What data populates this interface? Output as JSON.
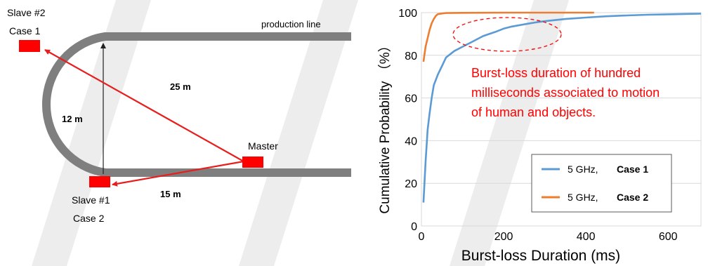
{
  "diagram": {
    "production_line_label": "production line",
    "slave2_label": "Slave #2",
    "slave2_case": "Case 1",
    "slave1_label": "Slave #1",
    "slave1_case": "Case 2",
    "master_label": "Master",
    "distance_25": "25 m",
    "distance_12": "12 m",
    "distance_15": "15 m",
    "track_color": "#7f7f7f",
    "node_color": "#ff0000",
    "link_color": "#e81e1e"
  },
  "annotation": {
    "lines": [
      "Burst-loss duration of hundred",
      "milliseconds associated to motion",
      "of human and objects."
    ],
    "color": "#ff0000"
  },
  "chart_data": {
    "type": "line",
    "title": "",
    "xlabel": "Burst-loss Duration (ms)",
    "ylabel": "Cumulative Probability （%）",
    "xlim": [
      0,
      680
    ],
    "ylim": [
      0,
      100
    ],
    "xticks": [
      0,
      200,
      400,
      600
    ],
    "yticks": [
      0,
      20,
      40,
      60,
      80,
      100
    ],
    "grid": "horizontal",
    "legend_position": "bottom-right",
    "series": [
      {
        "name_freq": "5 GHz,",
        "name_case": "Case 1",
        "color": "#5b9bd5",
        "x": [
          5,
          10,
          15,
          20,
          25,
          30,
          40,
          50,
          60,
          80,
          100,
          120,
          150,
          180,
          200,
          220,
          250,
          280,
          300,
          350,
          400,
          450,
          500,
          550,
          600,
          650,
          680
        ],
        "y": [
          11,
          30,
          45,
          53,
          60,
          66,
          71,
          75,
          79,
          82,
          84,
          86,
          89,
          91,
          92.5,
          93.5,
          94.5,
          95.5,
          96,
          97,
          97.7,
          98.3,
          98.7,
          99,
          99.2,
          99.4,
          99.5
        ]
      },
      {
        "name_freq": "5 GHz,",
        "name_case": "Case 2",
        "color": "#ed7d31",
        "x": [
          5,
          10,
          15,
          20,
          25,
          30,
          35,
          40,
          50,
          60,
          100,
          200,
          300,
          420
        ],
        "y": [
          77,
          84,
          88,
          92,
          95,
          97,
          98.5,
          99.3,
          99.6,
          99.8,
          99.9,
          100,
          100,
          100
        ]
      }
    ]
  }
}
